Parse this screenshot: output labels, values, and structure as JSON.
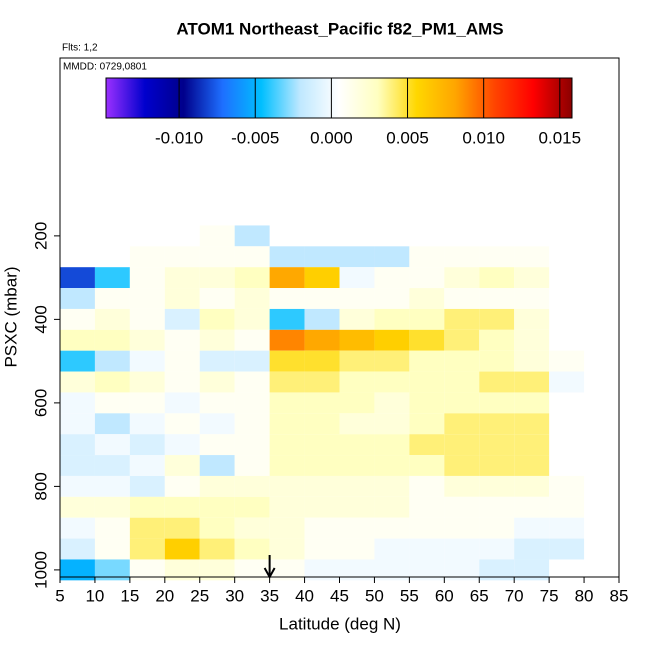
{
  "chart_data": {
    "type": "heatmap",
    "title": "ATOM1 Northeast_Pacific f82_PM1_AMS",
    "flights_label": "Flts: 1,2",
    "dates_label": "MMDD: 0729,0801",
    "xlabel": "Latitude (deg N)",
    "ylabel": "PSXC (mbar)",
    "xlim": [
      5,
      85
    ],
    "xticks": [
      5,
      10,
      15,
      20,
      25,
      30,
      35,
      40,
      45,
      50,
      55,
      60,
      65,
      70,
      75,
      80,
      85
    ],
    "ylim": [
      1017,
      -226
    ],
    "yticks": [
      200,
      400,
      600,
      800,
      1000
    ],
    "arrow_x": 35,
    "clim": [
      -0.0148,
      0.0158
    ],
    "cticks": [
      {
        "value": -0.01,
        "label": "-0.010"
      },
      -0.005,
      {
        "value": 0,
        "label": "0.000"
      },
      0.005,
      {
        "value": 0.01,
        "label": "0.010"
      },
      0.015
    ],
    "colors": [
      "#9b30ff",
      "#0000cd",
      "#00008b",
      "#1e6fff",
      "#00bfff",
      "#bfe8ff",
      "#ffffff",
      "#ffffc0",
      "#ffd700",
      "#ffa500",
      "#ff4500",
      "#ff0000",
      "#8b0000"
    ],
    "xbins": [
      5,
      10,
      15,
      20,
      25,
      30,
      35,
      40,
      45,
      50,
      55,
      60,
      65,
      70,
      75,
      80
    ],
    "ybins": [
      175,
      225,
      275,
      325,
      375,
      425,
      475,
      525,
      575,
      625,
      675,
      725,
      775,
      825,
      875,
      925,
      975,
      1025
    ],
    "values": [
      [
        null,
        null,
        null,
        null,
        0.001,
        -0.002,
        null,
        null,
        null,
        null,
        null,
        null,
        null,
        null,
        null
      ],
      [
        null,
        null,
        0.001,
        0.001,
        0.001,
        0.001,
        -0.002,
        -0.002,
        -0.002,
        -0.002,
        0.001,
        0.001,
        0.001,
        0.001,
        null
      ],
      [
        -0.008,
        -0.004,
        0.001,
        0.002,
        0.002,
        0.003,
        0.008,
        0.006,
        0,
        0.001,
        0.001,
        0.002,
        0.003,
        0.002,
        null
      ],
      [
        -0.002,
        0.001,
        0.001,
        0.002,
        0.001,
        0.002,
        0.001,
        0.001,
        0.001,
        0.001,
        0.002,
        0.001,
        0.001,
        0.001,
        null
      ],
      [
        0.001,
        0.002,
        0.001,
        -0.001,
        0.003,
        0.002,
        -0.004,
        -0.002,
        0.002,
        0.003,
        0.003,
        0.004,
        0.004,
        0.002,
        null
      ],
      [
        0.003,
        0.003,
        0.002,
        0.001,
        0.002,
        0.001,
        0.009,
        0.008,
        0.007,
        0.006,
        0.005,
        0.004,
        0.003,
        0.002,
        null
      ],
      [
        -0.004,
        -0.002,
        0,
        0.001,
        -0.001,
        -0.001,
        0.005,
        0.005,
        0.004,
        0.004,
        0.003,
        0.003,
        0.003,
        0.002,
        0.001
      ],
      [
        0.002,
        0.003,
        0.002,
        0.001,
        0.002,
        0.001,
        0.004,
        0.004,
        0.003,
        0.003,
        0.003,
        0.003,
        0.004,
        0.004,
        0
      ],
      [
        0,
        0.001,
        0.001,
        0,
        0.001,
        0.001,
        0.003,
        0.003,
        0.003,
        0.002,
        0.003,
        0.003,
        0.003,
        0.003,
        null
      ],
      [
        0,
        -0.002,
        0,
        0.001,
        0,
        0.001,
        0.003,
        0.003,
        0.002,
        0.002,
        0.003,
        0.004,
        0.004,
        0.004,
        null
      ],
      [
        -0.001,
        0,
        -0.001,
        0,
        0.001,
        0.001,
        0.003,
        0.003,
        0.003,
        0.003,
        0.004,
        0.004,
        0.004,
        0.004,
        null
      ],
      [
        -0.001,
        -0.001,
        0,
        0.002,
        -0.002,
        0.001,
        0.003,
        0.003,
        0.003,
        0.003,
        0.003,
        0.004,
        0.004,
        0.004,
        null
      ],
      [
        0,
        0,
        -0.001,
        0.001,
        0.002,
        0.002,
        0.002,
        0.002,
        0.002,
        0.002,
        0.001,
        0.002,
        0.002,
        0.002,
        0.001
      ],
      [
        0.002,
        0.002,
        0.003,
        0.003,
        0.003,
        0.003,
        0.002,
        0.002,
        0.002,
        0.002,
        0.001,
        0.001,
        0.001,
        0.001,
        0.001
      ],
      [
        0,
        0.001,
        0.004,
        0.004,
        0.003,
        0.002,
        0.002,
        0.001,
        0.001,
        0.001,
        0.001,
        0.001,
        0.001,
        0,
        0
      ],
      [
        -0.001,
        0.001,
        0.004,
        0.006,
        0.004,
        0.003,
        0.002,
        0.001,
        0.001,
        0,
        0,
        0,
        0,
        -0.001,
        -0.001
      ],
      [
        -0.005,
        -0.003,
        0.001,
        0.002,
        0.002,
        0.001,
        0.001,
        0,
        0,
        0,
        0,
        0,
        -0.001,
        -0.001,
        null
      ]
    ]
  }
}
